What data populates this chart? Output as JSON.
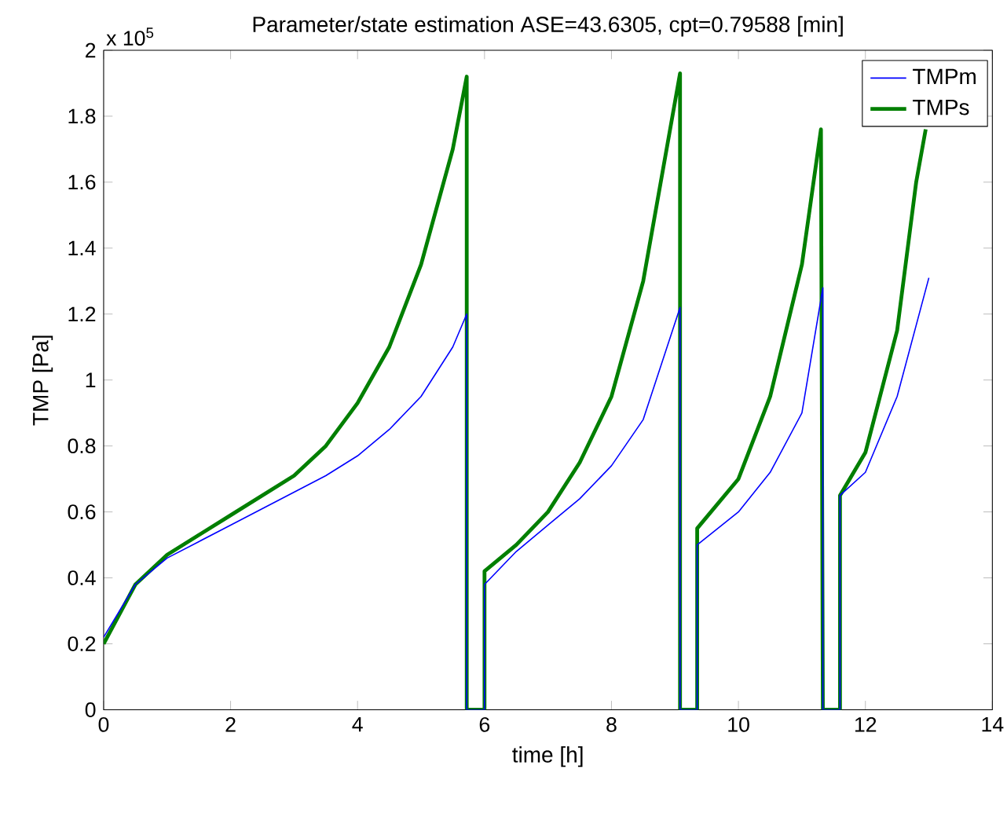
{
  "chart_data": {
    "type": "line",
    "title": "Parameter/state estimation ASE=43.6305, cpt=0.79588 [min]",
    "xlabel": "time [h]",
    "ylabel": "TMP [Pa]",
    "annotations": [
      "x 10$^{5}$"
    ],
    "xlim": [
      0,
      14
    ],
    "ylim": [
      0,
      2
    ],
    "xticks": [
      0,
      2,
      4,
      6,
      8,
      10,
      12,
      14
    ],
    "yticks": [
      0,
      0.2,
      0.4,
      0.6,
      0.8,
      1,
      1.2,
      1.4,
      1.6,
      1.8,
      2
    ],
    "grid": false,
    "legend": "top right",
    "marker": "none",
    "line_style": "solid",
    "series": [
      {
        "name": "TMPm",
        "color": "#0000ff",
        "x": [
          0,
          0.5,
          1,
          1.5,
          2,
          2.5,
          3,
          3.5,
          4,
          4.5,
          5,
          5.5,
          5.72,
          5.72,
          6.0,
          6.0,
          6.5,
          7,
          7.5,
          8,
          8.5,
          9.08,
          9.08,
          9.35,
          9.35,
          10,
          10.5,
          11,
          11.33,
          11.33,
          11.6,
          11.6,
          12,
          12.5,
          13
        ],
        "values": [
          0.22,
          0.38,
          0.46,
          0.51,
          0.56,
          0.61,
          0.66,
          0.71,
          0.77,
          0.85,
          0.95,
          1.1,
          1.2,
          0,
          0,
          0.38,
          0.48,
          0.56,
          0.64,
          0.74,
          0.88,
          1.22,
          0,
          0,
          0.5,
          0.6,
          0.72,
          0.9,
          1.28,
          0,
          0,
          0.65,
          0.72,
          0.95,
          1.31
        ]
      },
      {
        "name": "TMPs",
        "color": "#007f00",
        "x": [
          0,
          0.5,
          1,
          1.5,
          2,
          2.5,
          3,
          3.5,
          4,
          4.5,
          5,
          5.5,
          5.72,
          5.72,
          6.0,
          6.0,
          6.5,
          7,
          7.5,
          8,
          8.5,
          9.08,
          9.08,
          9.35,
          9.35,
          10,
          10.5,
          11,
          11.3,
          11.33,
          11.6,
          11.6,
          12,
          12.5,
          12.8,
          12.95
        ],
        "values": [
          0.2,
          0.38,
          0.47,
          0.53,
          0.59,
          0.65,
          0.71,
          0.8,
          0.93,
          1.1,
          1.35,
          1.7,
          1.92,
          0,
          0,
          0.42,
          0.5,
          0.6,
          0.75,
          0.95,
          1.3,
          1.93,
          0,
          0,
          0.55,
          0.7,
          0.95,
          1.35,
          1.76,
          0,
          0,
          0.65,
          0.78,
          1.15,
          1.6,
          1.76
        ]
      }
    ]
  }
}
